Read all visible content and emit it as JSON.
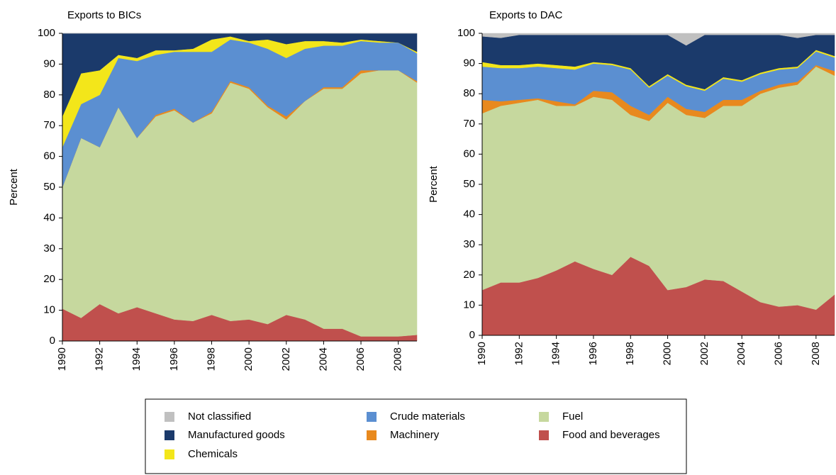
{
  "legend": {
    "items": [
      {
        "name": "Food and beverages",
        "color": "#c0504d"
      },
      {
        "name": "Fuel",
        "color": "#c6d89e"
      },
      {
        "name": "Machinery",
        "color": "#e8891e"
      },
      {
        "name": "Crude materials",
        "color": "#5b8fd1"
      },
      {
        "name": "Chemicals",
        "color": "#f3e61a"
      },
      {
        "name": "Manufactured goods",
        "color": "#1b3a6b"
      },
      {
        "name": "Not classified",
        "color": "#c0c0c0"
      }
    ]
  },
  "chart_data": [
    {
      "type": "stacked_area",
      "title": "Exports to BICs",
      "y_label": "Percent",
      "x": [
        1990,
        1991,
        1992,
        1993,
        1994,
        1995,
        1996,
        1997,
        1998,
        1999,
        2000,
        2001,
        2002,
        2003,
        2004,
        2005,
        2006,
        2007,
        2008,
        2009
      ],
      "xlim": [
        1990,
        2009
      ],
      "xticks": [
        1990,
        1992,
        1994,
        1996,
        1998,
        2000,
        2002,
        2004,
        2006,
        2008
      ],
      "ylim": [
        0,
        100
      ],
      "yticks": [
        0,
        10,
        20,
        30,
        40,
        50,
        60,
        70,
        80,
        90,
        100
      ],
      "series": [
        {
          "values": [
            10.5,
            7.5,
            12,
            9,
            11,
            9,
            7,
            6.5,
            8.5,
            6.5,
            7,
            5.5,
            8.5,
            7,
            4,
            4,
            1.5,
            1.5,
            1.5,
            2
          ]
        },
        {
          "values": [
            39.5,
            58.5,
            51,
            67,
            55,
            64,
            68,
            64.5,
            65.5,
            77.5,
            75,
            70.5,
            63.5,
            71,
            78,
            78,
            85.5,
            86.5,
            86.5,
            82
          ]
        },
        {
          "values": [
            0,
            0,
            0,
            0,
            0,
            0.5,
            0.5,
            0,
            0.5,
            0.5,
            0.5,
            0.5,
            1,
            0,
            0.5,
            0.5,
            1,
            0,
            0,
            0.5
          ]
        },
        {
          "values": [
            13,
            11,
            17,
            16,
            25,
            19.5,
            18.5,
            23,
            19.5,
            13.5,
            14.5,
            18.5,
            19,
            17,
            13.5,
            13.5,
            9.5,
            9,
            9,
            9
          ]
        },
        {
          "values": [
            10,
            10,
            8,
            1,
            1,
            1.5,
            0.5,
            1,
            4,
            1,
            0.5,
            3,
            4.5,
            2.5,
            1.5,
            1,
            0.5,
            0.5,
            0,
            0.5
          ]
        },
        {
          "values": [
            27,
            13,
            12,
            7,
            8,
            5.5,
            5.5,
            5,
            2,
            1,
            2.5,
            2,
            3.5,
            2.5,
            2.5,
            3,
            2,
            2.5,
            3,
            6
          ]
        },
        {
          "values": [
            0,
            0,
            0,
            0,
            0,
            0,
            0,
            0,
            0,
            0,
            0,
            0,
            0,
            0,
            0,
            0,
            0,
            0,
            0,
            0
          ]
        }
      ]
    },
    {
      "type": "stacked_area",
      "title": "Exports to DAC",
      "y_label": "Percent",
      "x": [
        1990,
        1991,
        1992,
        1993,
        1994,
        1995,
        1996,
        1997,
        1998,
        1999,
        2000,
        2001,
        2002,
        2003,
        2004,
        2005,
        2006,
        2007,
        2008,
        2009
      ],
      "xlim": [
        1990,
        2009
      ],
      "xticks": [
        1990,
        1992,
        1994,
        1996,
        1998,
        2000,
        2002,
        2004,
        2006,
        2008
      ],
      "ylim": [
        0,
        100
      ],
      "yticks": [
        0,
        10,
        20,
        30,
        40,
        50,
        60,
        70,
        80,
        90,
        100
      ],
      "series": [
        {
          "values": [
            15,
            17.5,
            17.5,
            19,
            21.5,
            24.5,
            22,
            20,
            26,
            23,
            15,
            16,
            18.5,
            18,
            14.5,
            11,
            9.5,
            10,
            8.5,
            13.5
          ]
        },
        {
          "values": [
            58.5,
            58.5,
            59.5,
            59,
            54.5,
            51.5,
            57,
            58,
            47,
            48,
            62,
            57,
            53.5,
            58,
            61.5,
            69,
            72.5,
            73,
            80.5,
            72.5
          ]
        },
        {
          "values": [
            4.5,
            1.5,
            1,
            0.5,
            1.5,
            0.5,
            2,
            2.5,
            3,
            2,
            2,
            2,
            2,
            2,
            2,
            1,
            1,
            1,
            0.5,
            1.5
          ]
        },
        {
          "values": [
            11,
            11,
            10.5,
            10.5,
            11,
            11.5,
            9,
            9,
            12,
            9,
            7,
            7.5,
            7,
            7,
            6,
            5.5,
            5,
            4.5,
            4.5,
            4.5
          ]
        },
        {
          "values": [
            1.5,
            1,
            1,
            1,
            1,
            1,
            0.5,
            0.5,
            0.5,
            0.5,
            0.5,
            0.5,
            0.5,
            0.5,
            0.5,
            0.5,
            0.5,
            0.5,
            0.5,
            0.5
          ]
        },
        {
          "values": [
            8.5,
            9,
            10,
            9.5,
            10,
            10.5,
            9,
            9.5,
            11,
            17,
            13,
            13,
            18,
            14,
            15,
            12.5,
            11,
            9.5,
            5,
            7
          ]
        },
        {
          "values": [
            1,
            1.5,
            0.5,
            0.5,
            0.5,
            0.5,
            0.5,
            0.5,
            0.5,
            0.5,
            0.5,
            4,
            0.5,
            0.5,
            0.5,
            0.5,
            0.5,
            1.5,
            0.5,
            0.5
          ]
        }
      ]
    }
  ]
}
